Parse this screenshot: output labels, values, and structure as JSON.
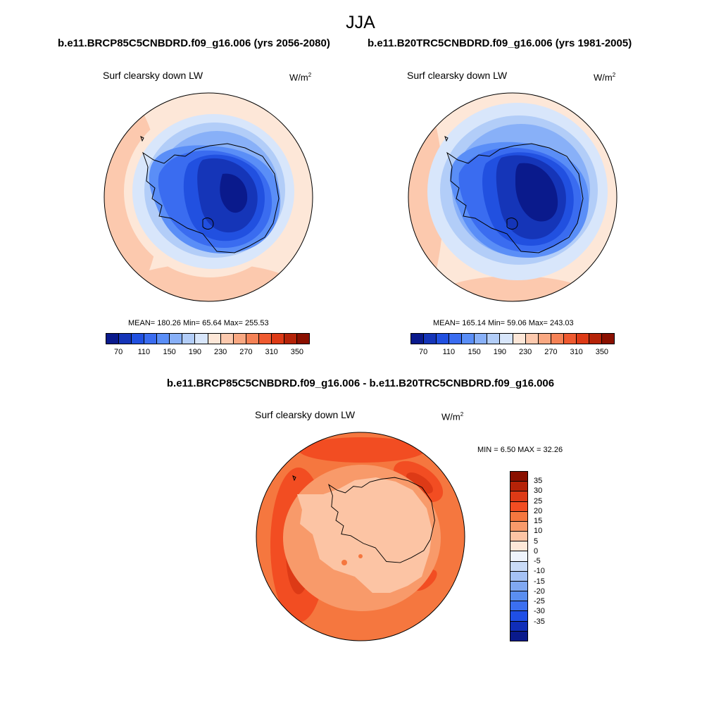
{
  "header": {
    "season": "JJA",
    "left_case": "b.e11.BRCP85C5CNBDRD.f09_g16.006 (yrs 2056-2080)",
    "right_case": "b.e11.B20TRC5CNBDRD.f09_g16.006 (yrs 1981-2005)",
    "diff_case": "b.e11.BRCP85C5CNBDRD.f09_g16.006 - b.e11.B20TRC5CNBDRD.f09_g16.006"
  },
  "panels": {
    "left": {
      "variable": "Surf clearsky down LW",
      "unit_base": "W/m",
      "unit_exp": "2",
      "stats": "MEAN= 180.26  Min=  65.64  Max= 255.53",
      "mean": 180.26,
      "min": 65.64,
      "max": 255.53
    },
    "right": {
      "variable": "Surf clearsky down LW",
      "unit_base": "W/m",
      "unit_exp": "2",
      "stats": "MEAN= 165.14  Min=  59.06  Max= 243.03",
      "mean": 165.14,
      "min": 59.06,
      "max": 243.03
    },
    "diff": {
      "variable": "Surf clearsky down LW",
      "unit_base": "W/m",
      "unit_exp": "2",
      "stats": "MIN =   6.50 MAX =  32.26",
      "min": 6.5,
      "max": 32.26
    }
  },
  "colorbar_abs": {
    "colors": [
      "#0a1a8c",
      "#1535b8",
      "#2150e0",
      "#3a6cf0",
      "#5a8ef7",
      "#88b0f8",
      "#b2cdf8",
      "#d8e6fb",
      "#fde7d8",
      "#fcc9ae",
      "#f9a882",
      "#f58256",
      "#ef5a30",
      "#dd3a16",
      "#b52308",
      "#8a1000"
    ],
    "ticks": [
      "70",
      "110",
      "150",
      "190",
      "230",
      "270",
      "310",
      "350"
    ]
  },
  "colorbar_diff": {
    "colors": [
      "#8a1000",
      "#b52308",
      "#dd3a16",
      "#f24d22",
      "#f5773f",
      "#f89a6a",
      "#fcc4a4",
      "#fde8d8",
      "#eef3fb",
      "#c9dbf7",
      "#a5c2f5",
      "#80a8f2",
      "#5a8ef0",
      "#3b6ff0",
      "#1f4fe6",
      "#102eb8",
      "#0a1a8c"
    ],
    "ticks": [
      "35",
      "30",
      "25",
      "20",
      "15",
      "10",
      "5",
      "0",
      "-5",
      "-10",
      "-15",
      "-20",
      "-25",
      "-30",
      "-35"
    ]
  }
}
